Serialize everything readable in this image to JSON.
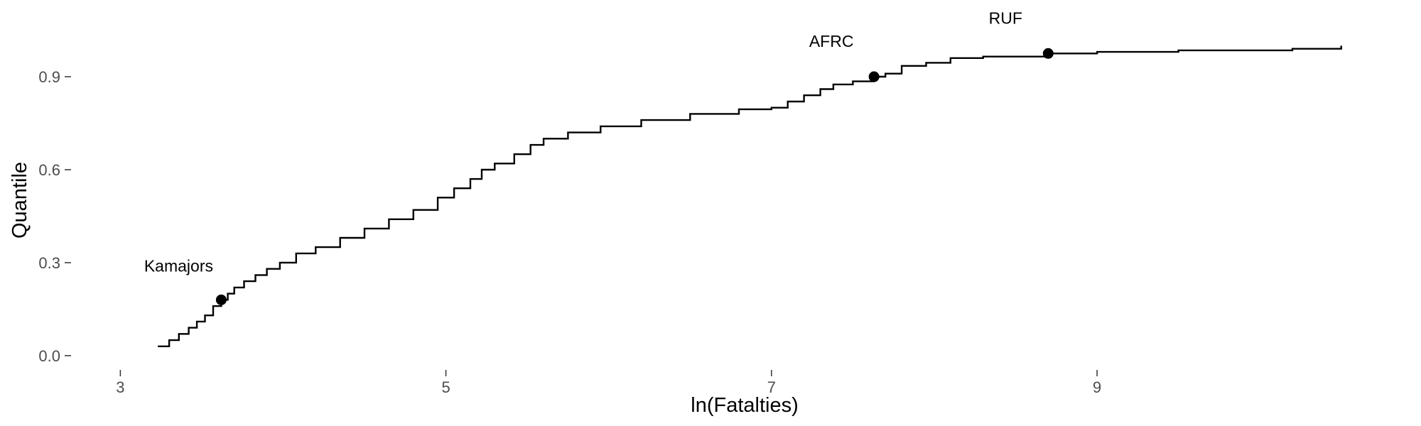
{
  "chart_data": {
    "type": "line",
    "title": "",
    "xlabel": "ln(Fatalties)",
    "ylabel": "Quantile",
    "xlim": [
      2.85,
      10.75
    ],
    "ylim": [
      -0.03,
      1.12
    ],
    "xticks": [
      3,
      5,
      7,
      9
    ],
    "yticks": [
      0.0,
      0.3,
      0.6,
      0.9
    ],
    "xtick_labels": [
      "3",
      "5",
      "7",
      "9"
    ],
    "ytick_labels": [
      "0.0",
      "0.3",
      "0.6",
      "0.9"
    ],
    "grid": false,
    "series": [
      {
        "style": "step",
        "color": "#000000",
        "x": [
          3.23,
          3.3,
          3.36,
          3.42,
          3.47,
          3.52,
          3.57,
          3.62,
          3.66,
          3.7,
          3.76,
          3.83,
          3.9,
          3.98,
          4.08,
          4.2,
          4.35,
          4.5,
          4.65,
          4.8,
          4.95,
          5.05,
          5.15,
          5.22,
          5.3,
          5.42,
          5.52,
          5.6,
          5.75,
          5.95,
          6.2,
          6.5,
          6.8,
          7.0,
          7.1,
          7.2,
          7.3,
          7.38,
          7.5,
          7.63,
          7.7,
          7.8,
          7.95,
          8.1,
          8.3,
          8.7,
          9.0,
          9.5,
          10.2,
          10.5
        ],
        "y": [
          0.03,
          0.05,
          0.07,
          0.09,
          0.11,
          0.13,
          0.16,
          0.18,
          0.2,
          0.22,
          0.24,
          0.26,
          0.28,
          0.3,
          0.33,
          0.35,
          0.38,
          0.41,
          0.44,
          0.47,
          0.51,
          0.54,
          0.57,
          0.6,
          0.62,
          0.65,
          0.68,
          0.7,
          0.72,
          0.74,
          0.76,
          0.78,
          0.795,
          0.8,
          0.82,
          0.84,
          0.86,
          0.875,
          0.885,
          0.9,
          0.91,
          0.935,
          0.945,
          0.96,
          0.965,
          0.975,
          0.98,
          0.985,
          0.99,
          1.0
        ]
      }
    ],
    "points": [
      {
        "label": "Kamajors",
        "x": 3.62,
        "y": 0.18
      },
      {
        "label": "AFRC",
        "x": 7.63,
        "y": 0.9
      },
      {
        "label": "RUF",
        "x": 8.7,
        "y": 0.975
      }
    ]
  }
}
